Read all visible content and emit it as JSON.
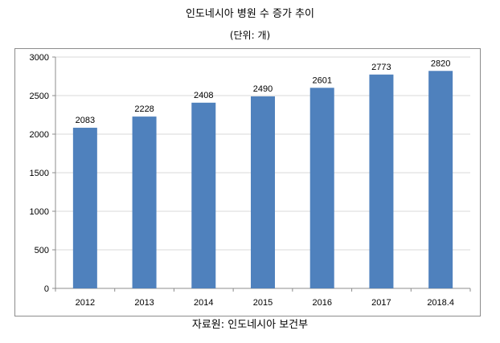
{
  "header": {
    "title": "인도네시아 병원 수 증가 추이",
    "unit_note": "(단위: 개)"
  },
  "footer": {
    "source": "자료원: 인도네시아 보건부"
  },
  "chart_data": {
    "type": "bar",
    "categories": [
      "2012",
      "2013",
      "2014",
      "2015",
      "2016",
      "2017",
      "2018.4"
    ],
    "series": [
      {
        "values": [
          2083,
          2228,
          2408,
          2490,
          2601,
          2773,
          2820
        ]
      }
    ],
    "data_labels": [
      "2083",
      "2228",
      "2408",
      "2490",
      "2601",
      "2773",
      "2820"
    ],
    "y_ticks": [
      0,
      500,
      1000,
      1500,
      2000,
      2500,
      3000
    ],
    "ylim": [
      0,
      3000
    ],
    "grid": true,
    "legend": "none",
    "bar_color": "#4f81bd",
    "grid_color": "#d9d9d9"
  }
}
